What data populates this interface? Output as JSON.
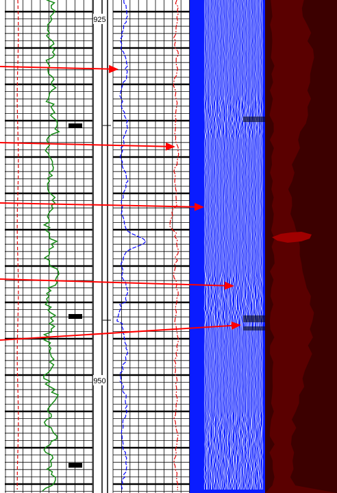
{
  "log": {
    "depth_labels": [
      {
        "name": "depth-label-925",
        "text": "925",
        "depth": 925
      },
      {
        "name": "depth-label-950",
        "text": "950",
        "depth": 950
      }
    ],
    "depth_range": [
      920.6,
      958.4
    ],
    "major_grid_every": 2.5,
    "minor_grid_every": 0.5,
    "annotation_arrow_count": 5,
    "colors": {
      "grid": "#000000",
      "gamma_ray_curve": "#1a8c1a",
      "blue_curve": "#0000ff",
      "red_dashed_curve": "#e00000",
      "image_track_background": "#0a1cff",
      "image_track_traces": "#ffffff",
      "dark_image_track": "#5a0000",
      "dark_image_track_deep": "#3c0000",
      "arrows": "#ff0000"
    }
  }
}
